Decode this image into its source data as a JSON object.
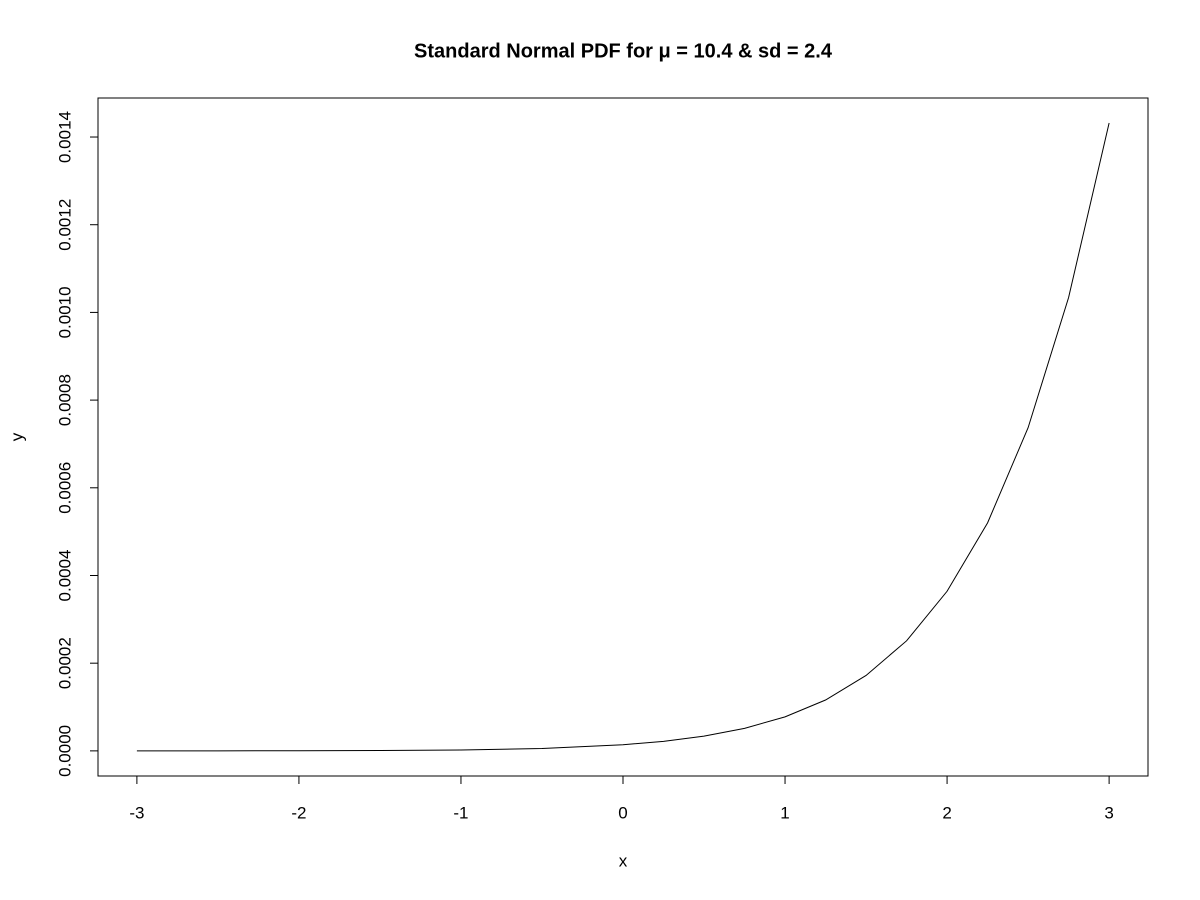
{
  "chart_data": {
    "type": "line",
    "title": "Standard Normal PDF for μ = 10.4 & sd = 2.4",
    "x_label": "x",
    "y_label": "y",
    "x": [
      -3,
      -2.5,
      -2,
      -1.5,
      -1,
      -0.5,
      0,
      0.25,
      0.5,
      0.75,
      1,
      1.25,
      1.5,
      1.75,
      2,
      2.25,
      2.5,
      2.75,
      3
    ],
    "series": [
      {
        "color": "#000000",
        "values": [
          3e-08,
          9e-08,
          2.7e-07,
          7.6e-07,
          2.1e-06,
          5.5e-06,
          1.39e-05,
          2.17e-05,
          3.36e-05,
          5.13e-05,
          7.76e-05,
          0.000116,
          0.000172,
          0.000251,
          0.000364,
          0.00052,
          0.000737,
          0.001034,
          0.001432
        ]
      }
    ],
    "xlim": [
      -3.24,
      3.24
    ],
    "ylim": [
      -5.73e-05,
      0.001489
    ],
    "xticks": [
      -3,
      -2,
      -1,
      0,
      1,
      2,
      3
    ],
    "yticks": [
      {
        "value": 0,
        "label": "0.0000"
      },
      {
        "value": 0.0002,
        "label": "0.0002"
      },
      {
        "value": 0.0004,
        "label": "0.0004"
      },
      {
        "value": 0.0006,
        "label": "0.0006"
      },
      {
        "value": 0.0008,
        "label": "0.0008"
      },
      {
        "value": 0.001,
        "label": "0.0010"
      },
      {
        "value": 0.0012,
        "label": "0.0012"
      },
      {
        "value": 0.0014,
        "label": "0.0014"
      }
    ],
    "grid": false
  }
}
